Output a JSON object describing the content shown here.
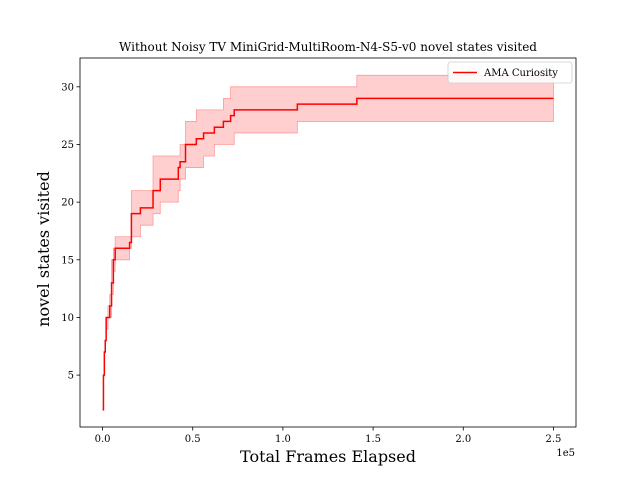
{
  "chart_data": {
    "type": "line",
    "title": "Without Noisy TV MiniGrid-MultiRoom-N4-S5-v0 novel states visited",
    "xlabel": "Total Frames Elapsed",
    "ylabel": "novel states visited",
    "x_offset_label": "1e5",
    "xlim": [
      -12500,
      262500
    ],
    "ylim": [
      0.5,
      32.5
    ],
    "x_ticks": [
      0,
      50000,
      100000,
      150000,
      200000,
      250000
    ],
    "x_tick_labels": [
      "0.0",
      "0.5",
      "1.0",
      "1.5",
      "2.0",
      "2.5"
    ],
    "y_ticks": [
      5,
      10,
      15,
      20,
      25,
      30
    ],
    "y_tick_labels": [
      "5",
      "10",
      "15",
      "20",
      "25",
      "30"
    ],
    "legend_position": "top-right",
    "colors": {
      "line": "#ff0000",
      "band": "#ffcccc",
      "band_edge": "#ff9999"
    },
    "series": [
      {
        "name": "AMA Curiosity",
        "step": true,
        "x": [
          0,
          500,
          1000,
          1500,
          2000,
          3000,
          4000,
          5000,
          6000,
          7000,
          15000,
          16000,
          21000,
          28000,
          32000,
          42000,
          43000,
          46000,
          52000,
          56000,
          62000,
          67000,
          71000,
          73000,
          74000,
          108000,
          141000,
          250000
        ],
        "y": [
          2,
          5,
          7,
          8,
          10,
          10,
          11,
          13,
          15,
          16,
          16.5,
          19,
          19.5,
          21,
          22,
          23,
          23.5,
          25,
          25.5,
          26,
          26.5,
          27,
          27.5,
          28,
          28,
          28.5,
          29,
          29
        ],
        "lower": [
          2,
          5,
          7,
          8,
          9,
          10,
          10,
          12,
          14,
          15,
          16,
          17,
          18,
          19,
          20,
          21,
          22,
          23,
          23,
          24,
          25,
          25,
          25,
          26,
          26,
          27,
          27,
          27
        ],
        "upper": [
          2,
          5,
          7,
          8,
          10,
          11,
          12,
          15,
          16,
          17,
          17,
          21,
          21,
          24,
          24,
          24,
          25,
          27,
          28,
          28,
          28,
          29,
          30,
          30,
          30,
          30,
          31,
          31
        ]
      }
    ]
  }
}
